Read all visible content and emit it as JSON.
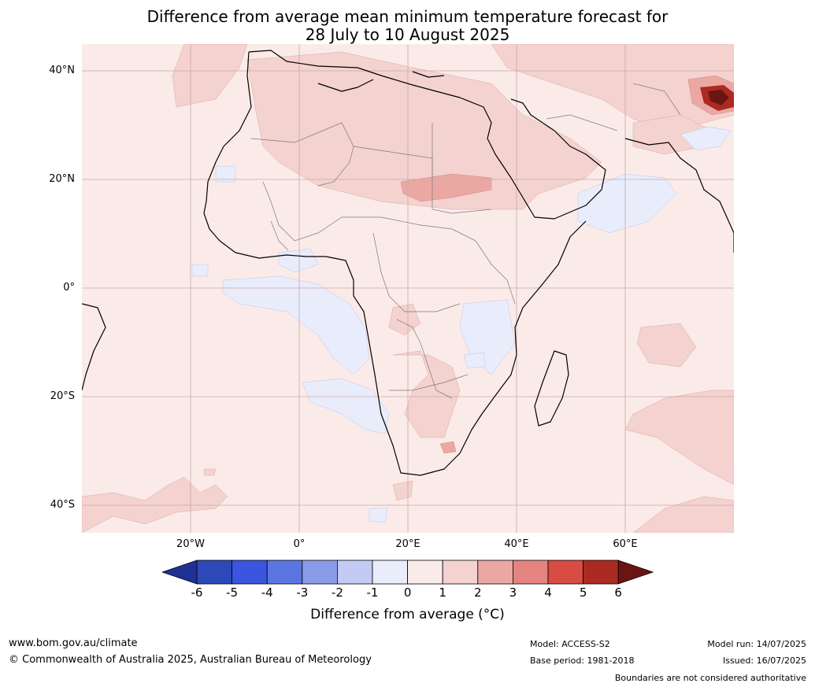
{
  "title": {
    "line1": "Difference from average mean minimum temperature forecast for",
    "line2": "28 July to 10 August 2025"
  },
  "map": {
    "lat_labels": [
      "40°N",
      "20°N",
      "0°",
      "20°S",
      "40°S"
    ],
    "lon_labels": [
      "20°W",
      "0°",
      "20°E",
      "40°E",
      "60°E"
    ]
  },
  "colorbar": {
    "ticks": [
      "-6",
      "-5",
      "-4",
      "-3",
      "-2",
      "-1",
      "0",
      "1",
      "2",
      "3",
      "4",
      "5",
      "6"
    ],
    "colors": [
      "#1f3194",
      "#2d48b8",
      "#3a55e0",
      "#5a74e2",
      "#8a9ce8",
      "#c3cbf4",
      "#e9ecfb",
      "#fbebe8",
      "#f4d2cf",
      "#eba8a3",
      "#e48480",
      "#d94c42",
      "#ab2a22",
      "#6a1512"
    ],
    "title": "Difference from average (°C)"
  },
  "footer": {
    "website": "www.bom.gov.au/climate",
    "copyright": "© Commonwealth of Australia 2025, Australian Bureau of Meteorology",
    "model": "Model: ACCESS-S2",
    "base_period": "Base period: 1981-2018",
    "model_run": "Model run: 14/07/2025",
    "issued": "Issued: 16/07/2025",
    "disclaimer": "Boundaries are not considered authoritative"
  }
}
